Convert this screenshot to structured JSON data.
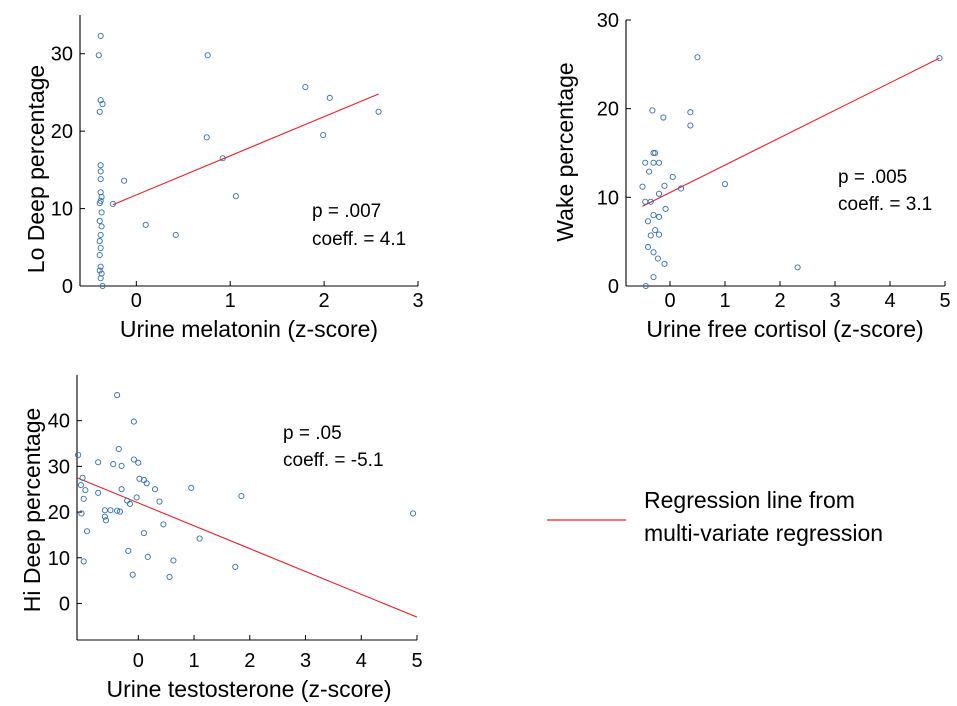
{
  "chart_data": [
    {
      "type": "scatter",
      "xlabel": "Urine melatonin (z-score)",
      "ylabel": "Lo Deep percentage",
      "xlim": [
        -0.6,
        3
      ],
      "ylim": [
        0,
        35
      ],
      "xticks": [
        "0",
        "1",
        "2",
        "3"
      ],
      "yticks": [
        "0",
        "10",
        "20",
        "30"
      ],
      "annotation": [
        "p = .007",
        "coeff. = 4.1"
      ],
      "regression": {
        "x": [
          -0.25,
          2.58
        ],
        "y": [
          10.5,
          24.8
        ]
      },
      "points": [
        {
          "x": -0.38,
          "y": 32.3
        },
        {
          "x": -0.4,
          "y": 29.8
        },
        {
          "x": -0.38,
          "y": 24
        },
        {
          "x": -0.36,
          "y": 23.5
        },
        {
          "x": -0.39,
          "y": 22.5
        },
        {
          "x": -0.38,
          "y": 15.6
        },
        {
          "x": -0.38,
          "y": 14.8
        },
        {
          "x": -0.38,
          "y": 13.8
        },
        {
          "x": -0.38,
          "y": 12.1
        },
        {
          "x": -0.37,
          "y": 11.5
        },
        {
          "x": -0.38,
          "y": 11
        },
        {
          "x": -0.39,
          "y": 10.7
        },
        {
          "x": -0.37,
          "y": 9.5
        },
        {
          "x": -0.39,
          "y": 8.4
        },
        {
          "x": -0.37,
          "y": 7.7
        },
        {
          "x": -0.38,
          "y": 6.6
        },
        {
          "x": -0.39,
          "y": 5.8
        },
        {
          "x": -0.38,
          "y": 4.9
        },
        {
          "x": -0.39,
          "y": 4
        },
        {
          "x": -0.38,
          "y": 2.5
        },
        {
          "x": -0.39,
          "y": 2
        },
        {
          "x": -0.37,
          "y": 1.6
        },
        {
          "x": -0.38,
          "y": 1
        },
        {
          "x": -0.36,
          "y": 0
        },
        {
          "x": -0.25,
          "y": 10.6
        },
        {
          "x": -0.13,
          "y": 13.6
        },
        {
          "x": 0.1,
          "y": 7.9
        },
        {
          "x": 0.42,
          "y": 6.6
        },
        {
          "x": 0.76,
          "y": 29.8
        },
        {
          "x": 0.75,
          "y": 19.2
        },
        {
          "x": 0.92,
          "y": 16.5
        },
        {
          "x": 1.06,
          "y": 11.6
        },
        {
          "x": 1.8,
          "y": 25.7
        },
        {
          "x": 1.99,
          "y": 19.5
        },
        {
          "x": 2.06,
          "y": 24.3
        },
        {
          "x": 2.58,
          "y": 22.5
        }
      ]
    },
    {
      "type": "scatter",
      "xlabel": "Urine free cortisol (z-score)",
      "ylabel": "Wake percentage",
      "xlim": [
        -0.8,
        5
      ],
      "ylim": [
        0,
        30
      ],
      "xticks": [
        "0",
        "1",
        "2",
        "3",
        "4",
        "5"
      ],
      "yticks": [
        "0",
        "10",
        "20",
        "30"
      ],
      "annotation": [
        "p = .005",
        "coeff. = 3.1"
      ],
      "regression": {
        "x": [
          -0.5,
          4.9
        ],
        "y": [
          9,
          25.7
        ]
      },
      "points": [
        {
          "x": -0.45,
          "y": 13.9
        },
        {
          "x": -0.3,
          "y": 13.9
        },
        {
          "x": -0.5,
          "y": 11.2
        },
        {
          "x": -0.45,
          "y": 9.5
        },
        {
          "x": -0.35,
          "y": 9.5
        },
        {
          "x": -0.32,
          "y": 19.8
        },
        {
          "x": -0.12,
          "y": 19
        },
        {
          "x": -0.3,
          "y": 15
        },
        {
          "x": -0.27,
          "y": 15
        },
        {
          "x": -0.2,
          "y": 13.9
        },
        {
          "x": -0.38,
          "y": 12.9
        },
        {
          "x": -0.1,
          "y": 11.3
        },
        {
          "x": -0.2,
          "y": 10.4
        },
        {
          "x": -0.08,
          "y": 8.7
        },
        {
          "x": -0.3,
          "y": 8
        },
        {
          "x": -0.2,
          "y": 7.8
        },
        {
          "x": -0.4,
          "y": 7.3
        },
        {
          "x": -0.27,
          "y": 6.3
        },
        {
          "x": -0.2,
          "y": 5.8
        },
        {
          "x": -0.35,
          "y": 5.7
        },
        {
          "x": -0.4,
          "y": 4.4
        },
        {
          "x": -0.3,
          "y": 3.8
        },
        {
          "x": -0.22,
          "y": 3.1
        },
        {
          "x": -0.1,
          "y": 2.5
        },
        {
          "x": -0.3,
          "y": 1
        },
        {
          "x": -0.44,
          "y": 0
        },
        {
          "x": 0.05,
          "y": 12.3
        },
        {
          "x": 0.2,
          "y": 11
        },
        {
          "x": 0.37,
          "y": 19.6
        },
        {
          "x": 0.37,
          "y": 18.1
        },
        {
          "x": 0.5,
          "y": 25.8
        },
        {
          "x": 1,
          "y": 11.5
        },
        {
          "x": 2.32,
          "y": 2.1
        },
        {
          "x": 4.9,
          "y": 25.7
        }
      ]
    },
    {
      "type": "scatter",
      "xlabel": "Urine testosterone (z-score)",
      "ylabel": "Hi Deep percentage",
      "xlim": [
        -1.1,
        5
      ],
      "ylim": [
        -8,
        50
      ],
      "xticks": [
        "0",
        "1",
        "2",
        "3",
        "4",
        "5"
      ],
      "yticks": [
        "0",
        "10",
        "20",
        "30",
        "40"
      ],
      "annotation": [
        "p = .05",
        "coeff. = -5.1"
      ],
      "regression": {
        "x": [
          -1.1,
          5
        ],
        "y": [
          27.5,
          -3
        ]
      },
      "points": [
        {
          "x": -1.08,
          "y": 32.5
        },
        {
          "x": -1.03,
          "y": 25.9
        },
        {
          "x": -1,
          "y": 27.5
        },
        {
          "x": -0.95,
          "y": 24.8
        },
        {
          "x": -0.98,
          "y": 22.9
        },
        {
          "x": -1.02,
          "y": 19.7
        },
        {
          "x": -0.92,
          "y": 15.8
        },
        {
          "x": -0.98,
          "y": 9.2
        },
        {
          "x": -0.72,
          "y": 30.9
        },
        {
          "x": -0.72,
          "y": 24.2
        },
        {
          "x": -0.6,
          "y": 20.4
        },
        {
          "x": -0.6,
          "y": 19
        },
        {
          "x": -0.58,
          "y": 18.2
        },
        {
          "x": -0.5,
          "y": 20.4
        },
        {
          "x": -0.45,
          "y": 30.5
        },
        {
          "x": -0.38,
          "y": 45.6
        },
        {
          "x": -0.35,
          "y": 33.8
        },
        {
          "x": -0.3,
          "y": 30.1
        },
        {
          "x": -0.38,
          "y": 20.3
        },
        {
          "x": -0.33,
          "y": 20.1
        },
        {
          "x": -0.3,
          "y": 25
        },
        {
          "x": -0.2,
          "y": 22.5
        },
        {
          "x": -0.15,
          "y": 21.8
        },
        {
          "x": -0.18,
          "y": 11.5
        },
        {
          "x": -0.1,
          "y": 6.3
        },
        {
          "x": -0.08,
          "y": 31.5
        },
        {
          "x": -0.08,
          "y": 39.8
        },
        {
          "x": 0.0,
          "y": 30.8
        },
        {
          "x": 0.02,
          "y": 27.3
        },
        {
          "x": -0.03,
          "y": 23.2
        },
        {
          "x": 0.1,
          "y": 27
        },
        {
          "x": 0.15,
          "y": 26.3
        },
        {
          "x": 0.1,
          "y": 15.4
        },
        {
          "x": 0.17,
          "y": 10.2
        },
        {
          "x": 0.3,
          "y": 25
        },
        {
          "x": 0.38,
          "y": 22.3
        },
        {
          "x": 0.45,
          "y": 17.3
        },
        {
          "x": 0.56,
          "y": 5.8
        },
        {
          "x": 0.63,
          "y": 9.4
        },
        {
          "x": 0.95,
          "y": 25.3
        },
        {
          "x": 1.1,
          "y": 14.2
        },
        {
          "x": 1.74,
          "y": 8
        },
        {
          "x": 1.85,
          "y": 23.5
        },
        {
          "x": 4.93,
          "y": 19.7
        }
      ]
    }
  ],
  "legend": {
    "line_color": "#e8212b",
    "marker_color": "#2f6fb3",
    "text_line1": "Regression line from",
    "text_line2": "multi-variate regression"
  }
}
